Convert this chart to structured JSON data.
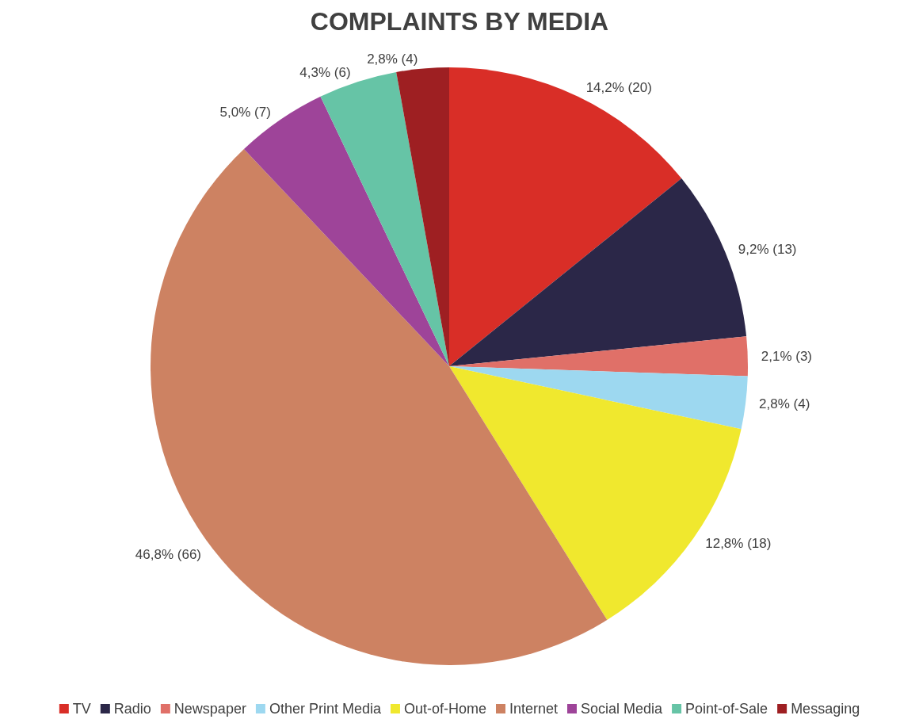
{
  "chart_data": {
    "type": "pie",
    "title": "COMPLAINTS BY MEDIA",
    "categories": [
      "TV",
      "Radio",
      "Newspaper",
      "Other Print Media",
      "Out-of-Home",
      "Internet",
      "Social Media",
      "Point-of-Sale",
      "Messaging"
    ],
    "values": [
      20,
      13,
      3,
      4,
      18,
      66,
      7,
      6,
      4
    ],
    "value_labels": [
      "14,2% (20)",
      "9,2% (13)",
      "2,1% (3)",
      "2,8% (4)",
      "12,8% (18)",
      "46,8% (66)",
      "5,0% (7)",
      "4,3% (6)",
      "2,8% (4)"
    ],
    "colors": [
      "#d92e27",
      "#2b2748",
      "#e07068",
      "#9dd8f0",
      "#f0e82e",
      "#cd8262",
      "#9e4499",
      "#66c4a6",
      "#9e1f22"
    ],
    "legend": "bottom"
  }
}
